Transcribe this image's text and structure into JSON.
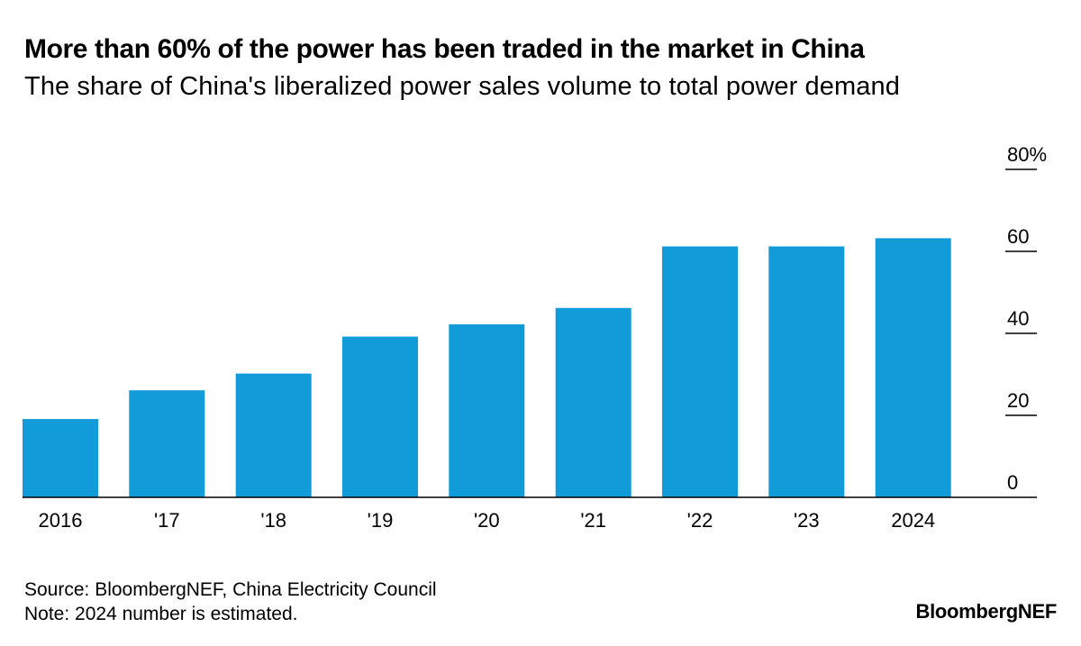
{
  "header": {
    "title": "More than 60% of the power has been traded in the market in China",
    "subtitle": "The share of China's liberalized power sales volume to total power demand"
  },
  "footer": {
    "source": "Source: BloombergNEF, China Electricity Council",
    "note": "Note: 2024 number is estimated.",
    "brand": "BloombergNEF"
  },
  "chart_data": {
    "type": "bar",
    "categories": [
      "2016",
      "'17",
      "'18",
      "'19",
      "'20",
      "'21",
      "'22",
      "'23",
      "2024"
    ],
    "values": [
      19.1,
      26.1,
      30.2,
      39.2,
      42.2,
      46.2,
      61.2,
      61.2,
      63.2
    ],
    "ylim": [
      0,
      80
    ],
    "yticks": [
      0,
      20,
      40,
      60,
      80
    ],
    "ytick_labels": [
      "0",
      "20",
      "40",
      "60",
      "80%"
    ],
    "y_axis_position": "right",
    "grid": false,
    "bar_color": "#119bd9",
    "title": "More than 60% of the power has been traded in the market in China",
    "subtitle": "The share of China's liberalized power sales volume to total power demand"
  }
}
